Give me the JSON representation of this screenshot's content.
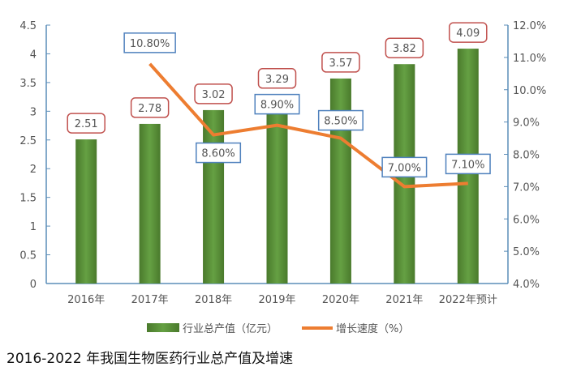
{
  "chart_data": {
    "type": "bar+line",
    "title": "2016-2022 年我国生物医药行业总产值及增速",
    "categories": [
      "2016年",
      "2017年",
      "2018年",
      "2019年",
      "2020年",
      "2021年",
      "2022年预计"
    ],
    "series": [
      {
        "name": "行业总产值（亿元）",
        "type": "bar",
        "axis": "left",
        "values": [
          2.51,
          2.78,
          3.02,
          3.29,
          3.57,
          3.82,
          4.09
        ],
        "labels": [
          "2.51",
          "2.78",
          "3.02",
          "3.29",
          "3.57",
          "3.82",
          "4.09"
        ]
      },
      {
        "name": "增长速度（%）",
        "type": "line",
        "axis": "right",
        "values": [
          null,
          10.8,
          8.6,
          8.9,
          8.5,
          7.0,
          7.1
        ],
        "labels": [
          "",
          "10.80%",
          "8.60%",
          "8.90%",
          "8.50%",
          "7.00%",
          "7.10%"
        ]
      }
    ],
    "left_axis": {
      "ylim": [
        0,
        4.5
      ],
      "ticks": [
        "0",
        "0.5",
        "1",
        "1.5",
        "2",
        "2.5",
        "3",
        "3.5",
        "4",
        "4.5"
      ]
    },
    "right_axis": {
      "ylim": [
        4,
        12
      ],
      "ticks": [
        "4.0%",
        "5.0%",
        "6.0%",
        "7.0%",
        "8.0%",
        "9.0%",
        "10.0%",
        "11.0%",
        "12.0%"
      ]
    },
    "legend": "bottom",
    "colors": {
      "bar": "#548235",
      "line": "#ED7D31",
      "axis": "#5B8DB8",
      "bar_label_border": "#C0504D",
      "line_label_border": "#4F81BD"
    }
  }
}
